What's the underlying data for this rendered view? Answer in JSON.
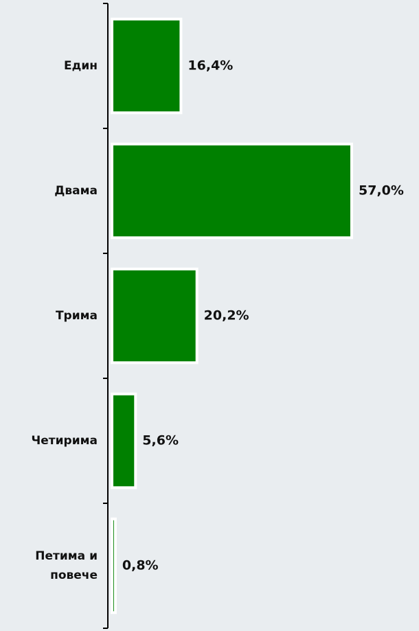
{
  "chart_data": {
    "type": "barh",
    "categories": [
      "Един",
      "Двама",
      "Трима",
      "Четирима",
      "Петима и повече"
    ],
    "values": [
      16.4,
      57.0,
      20.2,
      5.6,
      0.8
    ],
    "value_labels": [
      "16,4%",
      "57,0%",
      "20,2%",
      "5,6%",
      "0,8%"
    ],
    "color": "#008000"
  }
}
